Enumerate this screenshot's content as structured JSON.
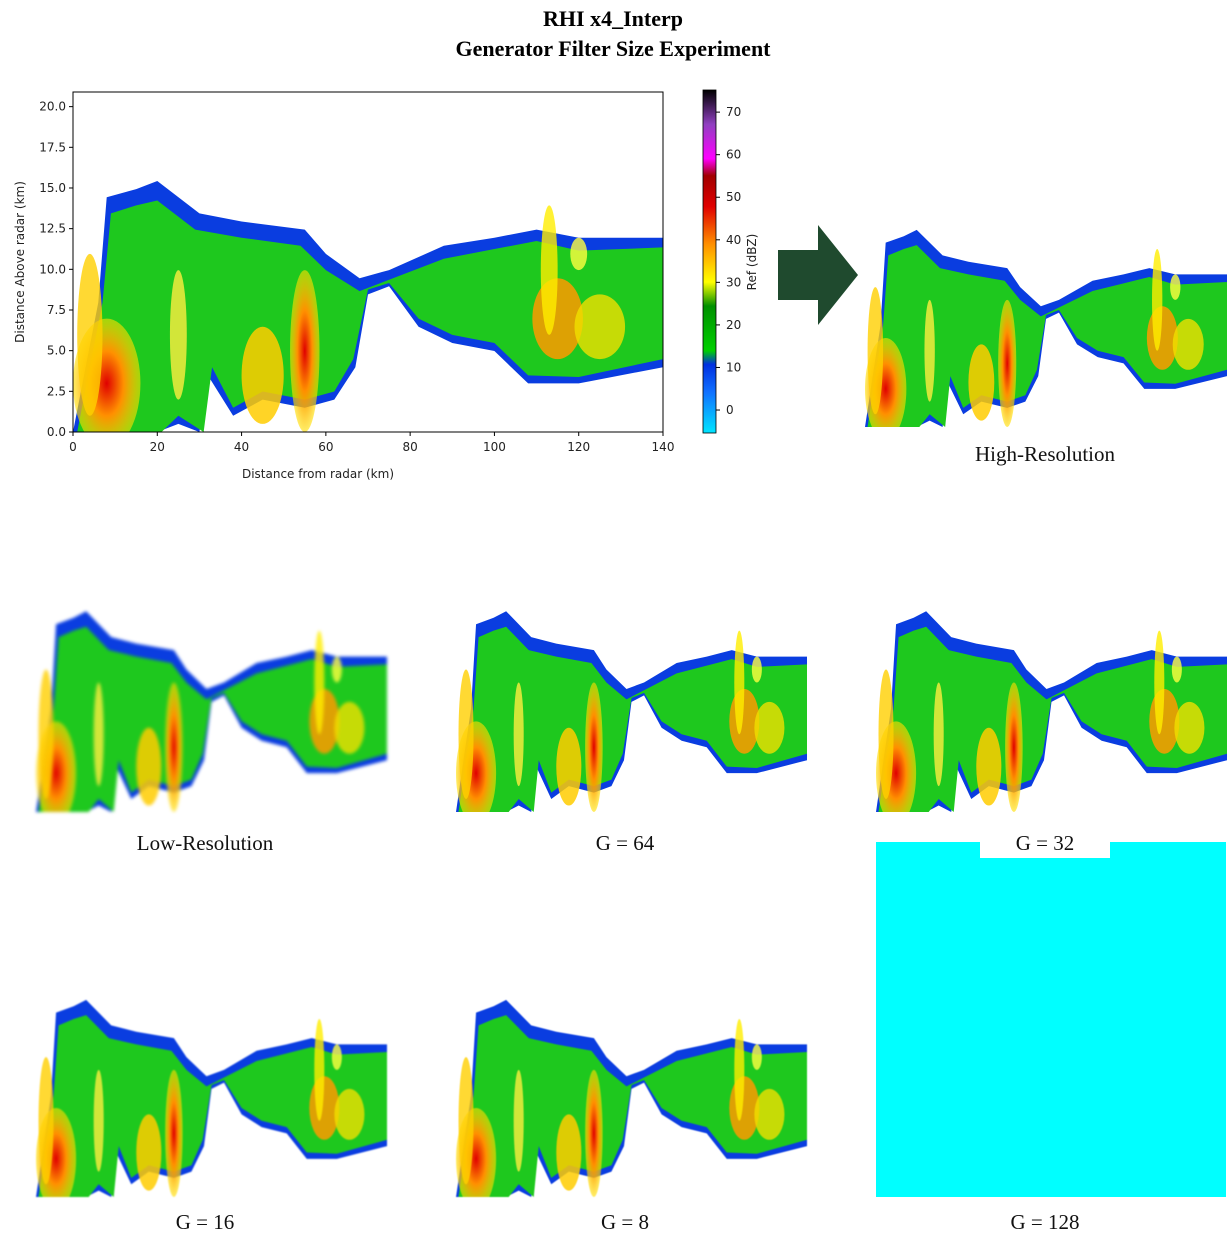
{
  "title": [
    "RHI x4_Interp",
    "Generator Filter Size Experiment"
  ],
  "radar_plot": {
    "xlabel": "Distance from radar (km)",
    "ylabel": "Distance Above radar  (km)",
    "xlim": [
      0,
      140
    ],
    "xticks": [
      0,
      20,
      40,
      60,
      80,
      100,
      120,
      140
    ],
    "ylim": [
      0,
      20.9
    ],
    "yticks": [
      {
        "value": 0,
        "label": "0.0"
      },
      2.5,
      {
        "value": 5,
        "label": "5.0"
      },
      7.5,
      {
        "value": 10,
        "label": "10.0"
      },
      12.5,
      {
        "value": 15,
        "label": "15.0"
      },
      17.5,
      {
        "value": 20,
        "label": "20.0"
      }
    ],
    "colorbar": {
      "label": "Ref (dBZ)",
      "lim": [
        -5.4,
        75.2
      ],
      "ticks": [
        0,
        10,
        20,
        30,
        40,
        50,
        60,
        70
      ]
    }
  },
  "panels": [
    {
      "label": "High-Resolution"
    },
    {
      "label": "Low-Resolution"
    },
    {
      "label": "G = 64"
    },
    {
      "label": "G = 32"
    },
    {
      "label": "G = 16"
    },
    {
      "label": "G = 8"
    },
    {
      "label": "G = 128"
    }
  ]
}
